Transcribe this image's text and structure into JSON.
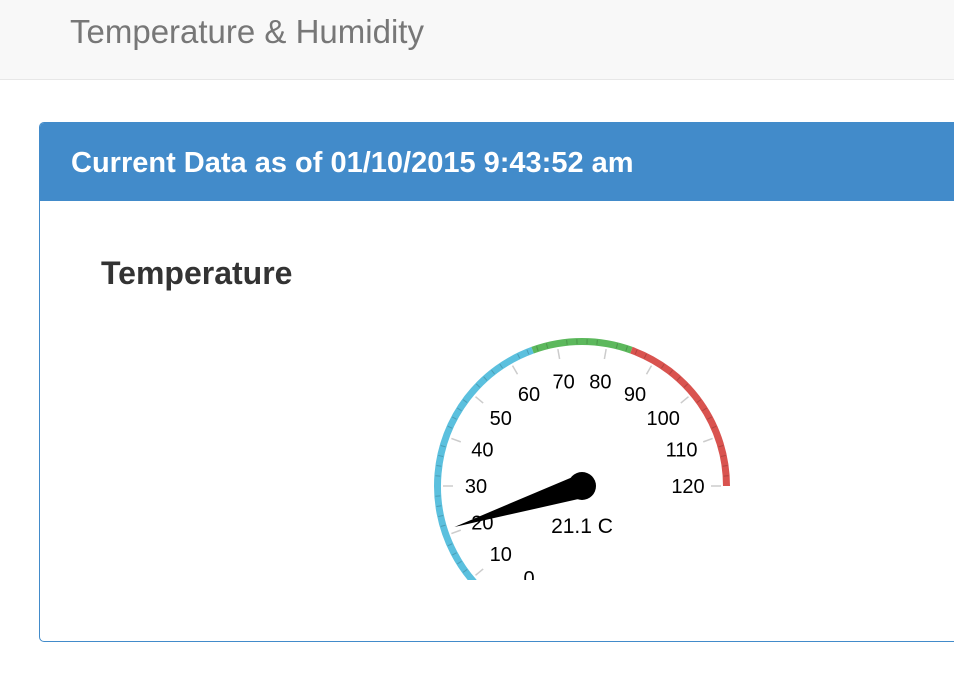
{
  "navbar": {
    "brand": "Temperature & Humidity"
  },
  "panel": {
    "title": "Current Data as of 01/10/2015 9:43:52 am"
  },
  "temperature": {
    "title": "Temperature",
    "gauge": {
      "value": 21.1,
      "value_label": "21.1 C",
      "min": 0,
      "max": 120,
      "major_ticks": [
        0,
        10,
        20,
        30,
        40,
        50,
        60,
        70,
        80,
        90,
        100,
        110,
        120
      ],
      "bands": [
        {
          "from": 0,
          "to": 65,
          "color": "#5bc0de"
        },
        {
          "from": 65,
          "to": 85,
          "color": "#5cb85c"
        },
        {
          "from": 85,
          "to": 120,
          "color": "#d9534f"
        }
      ]
    }
  }
}
